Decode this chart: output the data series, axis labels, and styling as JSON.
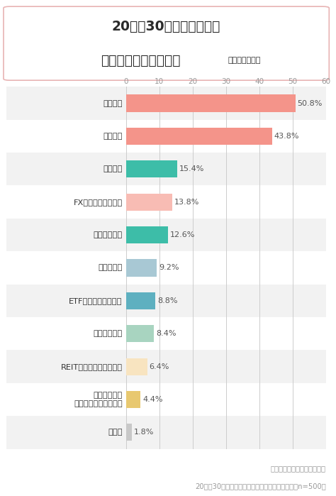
{
  "title_line1": "20代・30代の働く女性が",
  "title_line2": "行なっている投資は？",
  "title_suffix": "（複数回答可）",
  "categories": [
    "株式投資",
    "投資信託",
    "仮想通貨",
    "FX（外国為替取引）",
    "個人向け国債",
    "不動産投資",
    "ETF（上場投資信託）",
    "個人向け社債",
    "REIT（不動産投資信託）",
    "コモディティ\n（金、原油、穀物等）",
    "その他"
  ],
  "values": [
    50.8,
    43.8,
    15.4,
    13.8,
    12.6,
    9.2,
    8.8,
    8.4,
    6.4,
    4.4,
    1.8
  ],
  "bar_colors": [
    "#F4948A",
    "#F4948A",
    "#3DBDA8",
    "#F8BCB4",
    "#3DBDA8",
    "#A8C8D4",
    "#5EB0C0",
    "#A8D4C0",
    "#F8E4C0",
    "#E8C870",
    "#C8C8C8"
  ],
  "labels": [
    "50.8%",
    "43.8%",
    "15.4%",
    "13.8%",
    "12.6%",
    "9.2%",
    "8.8%",
    "8.4%",
    "6.4%",
    "4.4%",
    "1.8%"
  ],
  "xlim": [
    0,
    60
  ],
  "xticks": [
    0,
    10,
    20,
    30,
    40,
    50,
    60
  ],
  "background_color": "#FFFFFF",
  "row_bg_even": "#F2F2F2",
  "row_bg_odd": "#FFFFFF",
  "footer_line1": "三井住友カード株式会社調べ",
  "footer_line2": "20代〜30代の現在投資を行なっている働く女性（n=500）",
  "title_border_color": "#E8B4B4",
  "bar_height": 0.52
}
